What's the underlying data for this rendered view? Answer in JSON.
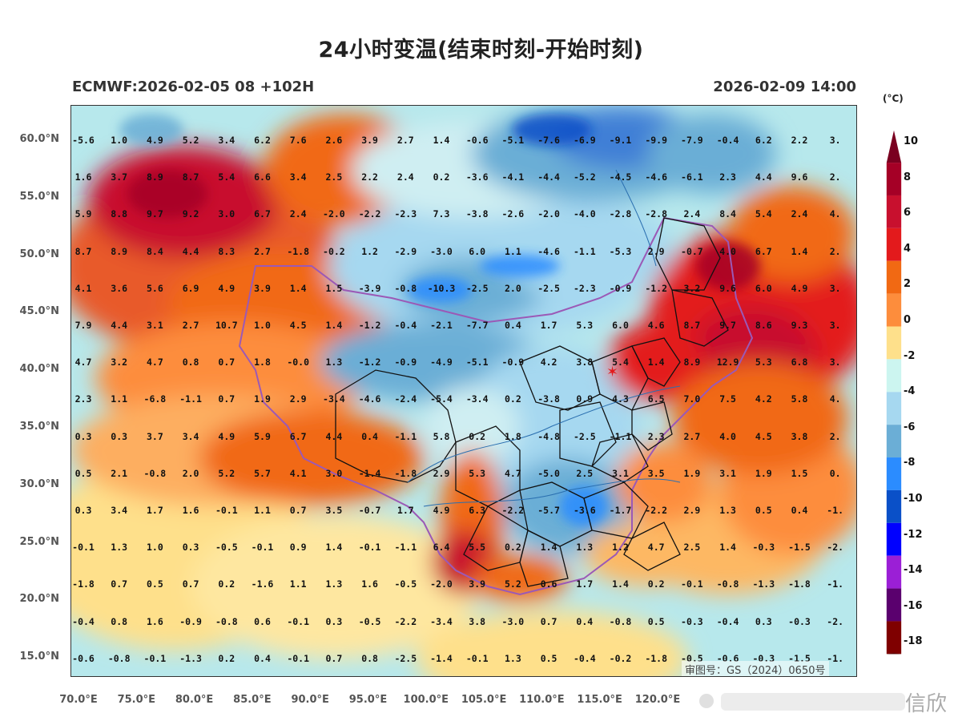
{
  "title": "24小时变温(结束时刻-开始时刻)",
  "model_info": "ECMWF:2026-02-05 08 +102H",
  "valid_time": "2026-02-09 14:00",
  "watermark": "审图号：GS（2024）0650号",
  "weibo_text": "信欣",
  "colorbar": {
    "unit": "(°C)",
    "labels": [
      "10",
      "8",
      "6",
      "4",
      "2",
      "0",
      "-2",
      "-4",
      "-6",
      "-8",
      "-10",
      "-12",
      "-14",
      "-16",
      "-18"
    ],
    "colors": [
      "#a50026",
      "#c8102e",
      "#e31a1c",
      "#f16913",
      "#fd8d3c",
      "#fee08b",
      "#ccf5f0",
      "#a6d8f0",
      "#6baed6",
      "#2b8cff",
      "#0a50c8",
      "#0000ff",
      "#9b1fd6",
      "#5a006e",
      "#7f0000"
    ]
  },
  "lat_ticks": [
    "60.0°N",
    "55.0°N",
    "50.0°N",
    "45.0°N",
    "40.0°N",
    "35.0°N",
    "30.0°N",
    "25.0°N",
    "20.0°N",
    "15.0°N"
  ],
  "lon_ticks": [
    "70.0°E",
    "75.0°E",
    "80.0°E",
    "85.0°E",
    "90.0°E",
    "95.0°E",
    "100.0°E",
    "105.0°E",
    "110.0°E",
    "115.0°E",
    "120.0°E"
  ],
  "grid_values": [
    [
      "-5.6",
      "1.0",
      "4.9",
      "5.2",
      "3.4",
      "6.2",
      "7.6",
      "2.6",
      "3.9",
      "2.7",
      "1.4",
      "-0.6",
      "-5.1",
      "-7.6",
      "-6.9",
      "-9.1",
      "-9.9",
      "-7.9",
      "-0.4",
      "6.2",
      "2.2",
      "3."
    ],
    [
      "1.6",
      "3.7",
      "8.9",
      "8.7",
      "5.4",
      "6.6",
      "3.4",
      "2.5",
      "2.2",
      "2.4",
      "0.2",
      "-3.6",
      "-4.1",
      "-4.4",
      "-5.2",
      "-4.5",
      "-4.6",
      "-6.1",
      "2.3",
      "4.4",
      "9.6",
      "2."
    ],
    [
      "5.9",
      "8.8",
      "9.7",
      "9.2",
      "3.0",
      "6.7",
      "2.4",
      "-2.0",
      "-2.2",
      "-2.3",
      "7.3",
      "-3.8",
      "-2.6",
      "-2.0",
      "-4.0",
      "-2.8",
      "-2.8",
      "2.4",
      "8.4",
      "5.4",
      "2.4",
      "4."
    ],
    [
      "8.7",
      "8.9",
      "8.4",
      "4.4",
      "8.3",
      "2.7",
      "-1.8",
      "-0.2",
      "1.2",
      "-2.9",
      "-3.0",
      "6.0",
      "1.1",
      "-4.6",
      "-1.1",
      "-5.3",
      "2.9",
      "-0.7",
      "4.0",
      "6.7",
      "1.4",
      "2."
    ],
    [
      "4.1",
      "3.6",
      "5.6",
      "6.9",
      "4.9",
      "3.9",
      "1.4",
      "1.5",
      "-3.9",
      "-0.8",
      "-10.3",
      "-2.5",
      "2.0",
      "-2.5",
      "-2.3",
      "-0.9",
      "-1.2",
      "3.2",
      "9.6",
      "6.0",
      "4.9",
      "3."
    ],
    [
      "7.9",
      "4.4",
      "3.1",
      "2.7",
      "10.7",
      "1.0",
      "4.5",
      "1.4",
      "-1.2",
      "-0.4",
      "-2.1",
      "-7.7",
      "0.4",
      "1.7",
      "5.3",
      "6.0",
      "4.6",
      "8.7",
      "9.7",
      "8.6",
      "9.3",
      "3."
    ],
    [
      "4.7",
      "3.2",
      "4.7",
      "0.8",
      "0.7",
      "1.8",
      "-0.0",
      "1.3",
      "-1.2",
      "-0.9",
      "-4.9",
      "-5.1",
      "-0.9",
      "4.2",
      "3.8",
      "5.4",
      "1.4",
      "8.9",
      "12.9",
      "5.3",
      "6.8",
      "3."
    ],
    [
      "2.3",
      "1.1",
      "-6.8",
      "-1.1",
      "0.7",
      "1.9",
      "2.9",
      "-3.4",
      "-4.6",
      "-2.4",
      "-5.4",
      "-3.4",
      "0.2",
      "-3.8",
      "0.9",
      "4.3",
      "6.5",
      "7.0",
      "7.5",
      "4.2",
      "5.8",
      "4."
    ],
    [
      "0.3",
      "0.3",
      "3.7",
      "3.4",
      "4.9",
      "5.9",
      "6.7",
      "4.4",
      "0.4",
      "-1.1",
      "5.8",
      "0.2",
      "1.8",
      "-4.8",
      "-2.5",
      "-1.1",
      "2.3",
      "2.7",
      "4.0",
      "4.5",
      "3.8",
      "2."
    ],
    [
      "0.5",
      "2.1",
      "-0.8",
      "2.0",
      "5.2",
      "5.7",
      "4.1",
      "3.0",
      "-1.4",
      "-1.8",
      "2.9",
      "5.3",
      "4.7",
      "-5.0",
      "2.5",
      "3.1",
      "3.5",
      "1.9",
      "3.1",
      "1.9",
      "1.5",
      "0."
    ],
    [
      "0.3",
      "3.4",
      "1.7",
      "1.6",
      "-0.1",
      "1.1",
      "0.7",
      "3.5",
      "-0.7",
      "1.7",
      "4.9",
      "6.3",
      "-2.2",
      "-5.7",
      "-3.6",
      "-1.7",
      "-2.2",
      "2.9",
      "1.3",
      "0.5",
      "0.4",
      "-1."
    ],
    [
      "-0.1",
      "1.3",
      "1.0",
      "0.3",
      "-0.5",
      "-0.1",
      "0.9",
      "1.4",
      "-0.1",
      "-1.1",
      "6.4",
      "5.5",
      "0.2",
      "1.4",
      "1.3",
      "1.2",
      "4.7",
      "2.5",
      "1.4",
      "-0.3",
      "-1.5",
      "-2."
    ],
    [
      "-1.8",
      "0.7",
      "0.5",
      "0.7",
      "0.2",
      "-1.6",
      "1.1",
      "1.3",
      "1.6",
      "-0.5",
      "-2.0",
      "3.9",
      "5.2",
      "0.6",
      "1.7",
      "1.4",
      "0.2",
      "-0.1",
      "-0.8",
      "-1.3",
      "-1.8",
      "-1."
    ],
    [
      "-0.4",
      "0.8",
      "1.6",
      "-0.9",
      "-0.8",
      "0.6",
      "-0.1",
      "0.3",
      "-0.5",
      "-2.2",
      "-3.4",
      "3.8",
      "-3.0",
      "0.7",
      "0.4",
      "-0.8",
      "0.5",
      "-0.3",
      "-0.4",
      "0.3",
      "-0.3",
      "-2."
    ],
    [
      "-0.6",
      "-0.8",
      "-0.1",
      "-1.3",
      "0.2",
      "0.4",
      "-0.1",
      "0.7",
      "0.8",
      "-2.5",
      "-1.4",
      "-0.1",
      "1.3",
      "0.5",
      "-0.4",
      "-0.2",
      "-1.8",
      "-0.5",
      "-0.6",
      "-0.3",
      "-1.5",
      "-1."
    ]
  ]
}
